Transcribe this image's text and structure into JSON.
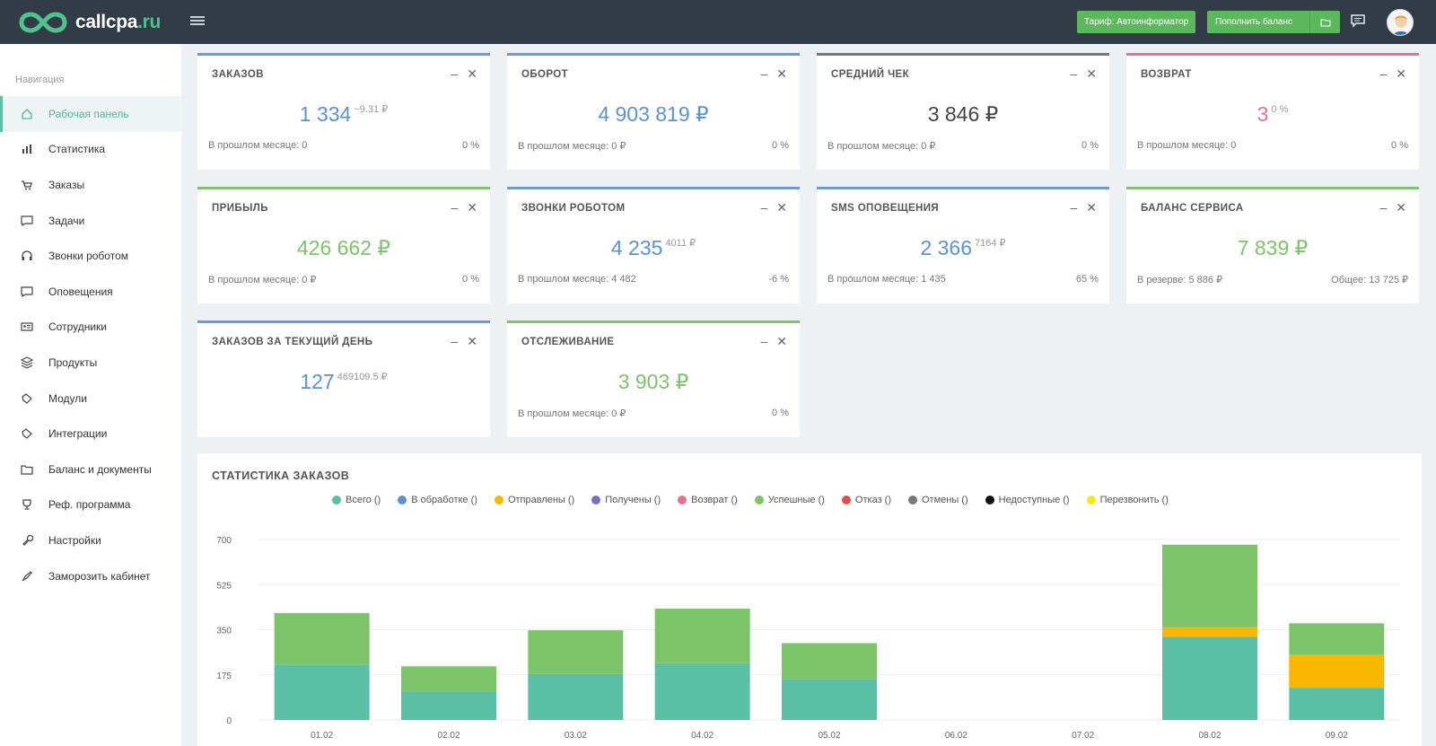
{
  "header": {
    "logo_text": "callcpa",
    "logo_tld": ".ru",
    "tariff_button": "Тариф: Автоинформатор",
    "balance_button": "Пополнить баланс"
  },
  "sidebar": {
    "heading": "Навигация",
    "items": [
      {
        "label": "Рабочая панель",
        "icon": "home-icon"
      },
      {
        "label": "Статистика",
        "icon": "bar-chart-icon"
      },
      {
        "label": "Заказы",
        "icon": "cart-icon"
      },
      {
        "label": "Задачи",
        "icon": "tasks-icon"
      },
      {
        "label": "Звонки роботом",
        "icon": "headphones-icon"
      },
      {
        "label": "Оповещения",
        "icon": "message-icon"
      },
      {
        "label": "Сотрудники",
        "icon": "id-card-icon"
      },
      {
        "label": "Продукты",
        "icon": "layers-icon"
      },
      {
        "label": "Модули",
        "icon": "puzzle-icon"
      },
      {
        "label": "Интеграции",
        "icon": "plug-icon"
      },
      {
        "label": "Баланс и документы",
        "icon": "folder-icon"
      },
      {
        "label": "Реф. программа",
        "icon": "trophy-icon"
      },
      {
        "label": "Настройки",
        "icon": "wrench-icon"
      },
      {
        "label": "Заморозить кабинет",
        "icon": "rocket-icon"
      }
    ]
  },
  "cards": [
    {
      "title": "ЗАКАЗОВ",
      "value": "1 334",
      "sub": "~9.31 ₽",
      "foot_left": "В прошлом месяце: 0",
      "foot_right": "0 %",
      "color": "#6a9bd8"
    },
    {
      "title": "ОБОРОТ",
      "value": "4 903 819 ₽",
      "sub": "",
      "foot_left": "В прошлом месяце: 0 ₽",
      "foot_right": "0 %",
      "color": "#6a9bd8"
    },
    {
      "title": "СРЕДНИЙ ЧЕК",
      "value": "3 846 ₽",
      "sub": "",
      "foot_left": "В прошлом месяце: 0 ₽",
      "foot_right": "0 %",
      "color": "#777777"
    },
    {
      "title": "ВОЗВРАТ",
      "value": "3",
      "sub": "0 %",
      "foot_left": "В прошлом месяце: 0",
      "foot_right": "0 %",
      "color": "#e5738f"
    },
    {
      "title": "ПРИБЫЛЬ",
      "value": "426 662 ₽",
      "sub": "",
      "foot_left": "В прошлом месяце: 0 ₽",
      "foot_right": "0 %",
      "color": "#7cc46a"
    },
    {
      "title": "ЗВОНКИ РОБОТОМ",
      "value": "4 235",
      "sub": "4011 ₽",
      "foot_left": "В прошлом месяце: 4 482",
      "foot_right": "-6 %",
      "color": "#6a9bd8"
    },
    {
      "title": "SMS ОПОВЕЩЕНИЯ",
      "value": "2 366",
      "sub": "7164 ₽",
      "foot_left": "В прошлом месяце: 1 435",
      "foot_right": "65 %",
      "color": "#6a9bd8"
    },
    {
      "title": "БАЛАНС СЕРВИСА",
      "value": "7 839 ₽",
      "sub": "",
      "foot_left": "В резерве: 5 886 ₽",
      "foot_right": "Общее: 13 725 ₽",
      "color": "#7cc46a"
    },
    {
      "title": "ЗАКАЗОВ ЗА ТЕКУЩИЙ ДЕНЬ",
      "value": "127",
      "sub": "469109.5 ₽",
      "foot_left": "",
      "foot_right": "",
      "color": "#6a9bd8"
    },
    {
      "title": "ОТСЛЕЖИВАНИЕ",
      "value": "3 903 ₽",
      "sub": "",
      "foot_left": "В прошлом месяце: 0 ₽",
      "foot_right": "0 %",
      "color": "#7cc46a"
    }
  ],
  "stats": {
    "title": "СТАТИСТИКА ЗАКАЗОВ",
    "legend": [
      {
        "label": "Всего ()",
        "color": "#5bbfa5"
      },
      {
        "label": "В обработке ()",
        "color": "#5b93d1"
      },
      {
        "label": "Отправлены ()",
        "color": "#f9b700"
      },
      {
        "label": "Получены ()",
        "color": "#7d6bc0"
      },
      {
        "label": "Возврат ()",
        "color": "#e5738f"
      },
      {
        "label": "Успешные ()",
        "color": "#7cc46a"
      },
      {
        "label": "Отказ ()",
        "color": "#e54d4d"
      },
      {
        "label": "Отмены ()",
        "color": "#777777"
      },
      {
        "label": "Недоступные ()",
        "color": "#111111"
      },
      {
        "label": "Перезвонить ()",
        "color": "#f4e81a"
      }
    ]
  },
  "chart_data": {
    "type": "bar",
    "stacked": true,
    "categories": [
      "01.02",
      "02.02",
      "03.02",
      "04.02",
      "05.02",
      "06.02",
      "07.02",
      "08.02",
      "09.02"
    ],
    "ylim": [
      0,
      700
    ],
    "yticks": [
      "700",
      "525",
      "350",
      "175",
      "0"
    ],
    "series": [
      {
        "name": "Всего ()",
        "color": "#5bbfa5",
        "values": [
          215,
          110,
          178,
          220,
          158,
          0,
          0,
          322,
          125
        ]
      },
      {
        "name": "Отправлены ()",
        "color": "#f9b700",
        "values": [
          0,
          0,
          0,
          0,
          0,
          0,
          0,
          38,
          128
        ]
      },
      {
        "name": "Успешные ()",
        "color": "#7cc46a",
        "values": [
          200,
          98,
          170,
          212,
          140,
          0,
          0,
          320,
          122
        ]
      }
    ]
  }
}
